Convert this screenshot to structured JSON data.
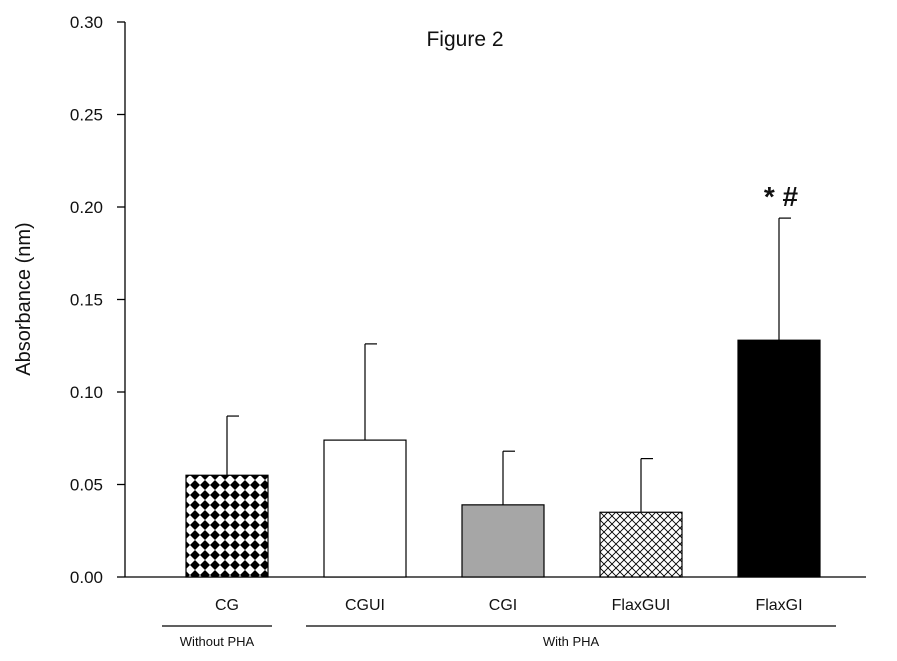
{
  "chart_data": {
    "type": "bar",
    "title": "Figure 2",
    "ylabel": "Absorbance (nm)",
    "xlabel": "",
    "ylim": [
      0,
      0.3
    ],
    "yticks": [
      "0.00",
      "0.05",
      "0.10",
      "0.15",
      "0.20",
      "0.25",
      "0.30"
    ],
    "categories": [
      "CG",
      "CGUI",
      "CGI",
      "FlaxGUI",
      "FlaxGI"
    ],
    "values": [
      0.055,
      0.074,
      0.039,
      0.035,
      0.128
    ],
    "errors": [
      0.032,
      0.052,
      0.029,
      0.029,
      0.066
    ],
    "fills": [
      "checker",
      "white",
      "gray",
      "crosshatch",
      "black"
    ],
    "annotations": [
      {
        "category": "FlaxGI",
        "text": "* #"
      }
    ],
    "groups": [
      {
        "label": "Without PHA",
        "categories": [
          "CG"
        ]
      },
      {
        "label": "With PHA",
        "categories": [
          "CGUI",
          "CGI",
          "FlaxGUI",
          "FlaxGI"
        ]
      }
    ],
    "grid": false,
    "legend": "none"
  },
  "colors": {
    "gray_bar": "#a6a6a6",
    "black_bar": "#000000",
    "axis": "#000000"
  }
}
